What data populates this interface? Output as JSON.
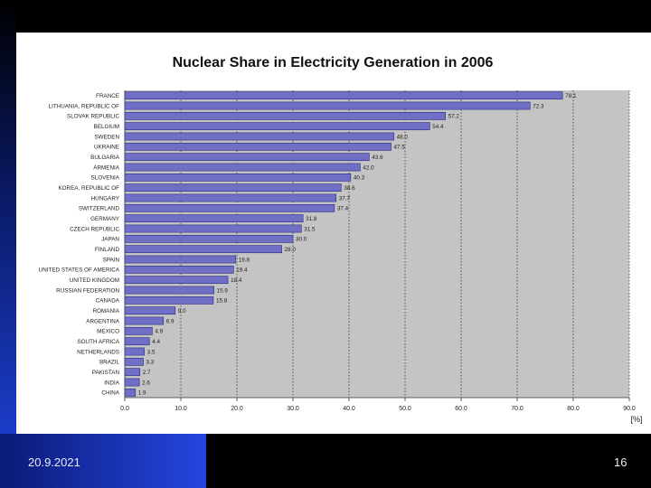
{
  "slide": {
    "date": "20.9.2021",
    "page_number": "16"
  },
  "colors": {
    "bar_fill": "#6f6fc6",
    "bar_stroke": "#2a2a80",
    "plot_bg": "#c4c4c4",
    "slide_band": "#1b3cc8"
  },
  "chart_data": {
    "type": "bar",
    "orientation": "horizontal",
    "title": "Nuclear Share in Electricity Generation in 2006",
    "xlabel": "[%]",
    "xlim": [
      0,
      90
    ],
    "xticks": [
      "0.0",
      "10.0",
      "20.0",
      "30.0",
      "40.0",
      "50.0",
      "60.0",
      "70.0",
      "80.0",
      "90.0"
    ],
    "grid": "vertical dotted",
    "categories": [
      "FRANCE",
      "LITHUANIA, REPUBLIC OF",
      "SLOVAK REPUBLIC",
      "BELGIUM",
      "SWEDEN",
      "UKRAINE",
      "BULGARIA",
      "ARMENIA",
      "SLOVENIA",
      "KOREA, REPUBLIC OF",
      "HUNGARY",
      "SWITZERLAND",
      "GERMANY",
      "CZECH REPUBLIC",
      "JAPAN",
      "FINLAND",
      "SPAIN",
      "UNITED STATES OF AMERICA",
      "UNITED KINGDOM",
      "RUSSIAN FEDERATION",
      "CANADA",
      "ROMANIA",
      "ARGENTINA",
      "MEXICO",
      "SOUTH AFRICA",
      "NETHERLANDS",
      "BRAZIL",
      "PAKISTAN",
      "INDIA",
      "CHINA"
    ],
    "values": [
      78.1,
      72.3,
      57.2,
      54.4,
      48.0,
      47.5,
      43.6,
      42.0,
      40.3,
      38.6,
      37.7,
      37.4,
      31.8,
      31.5,
      30.0,
      28.0,
      19.8,
      19.4,
      18.4,
      15.9,
      15.8,
      9.0,
      6.9,
      4.9,
      4.4,
      3.5,
      3.3,
      2.7,
      2.6,
      1.9
    ],
    "value_labels": [
      "78.1",
      "72.3",
      "57.2",
      "54.4",
      "48.0",
      "47.5",
      "43.6",
      "42.0",
      "40.3",
      "38.6",
      "37.7",
      "37.4",
      "31.8",
      "31.5",
      "30.0",
      "28.0",
      "19.8",
      "19.4",
      "18.4",
      "15.9",
      "15.8",
      "9.0",
      "6.9",
      "4.9",
      "4.4",
      "3.5",
      "3.3",
      "2.7",
      "2.6",
      "1.9"
    ]
  }
}
